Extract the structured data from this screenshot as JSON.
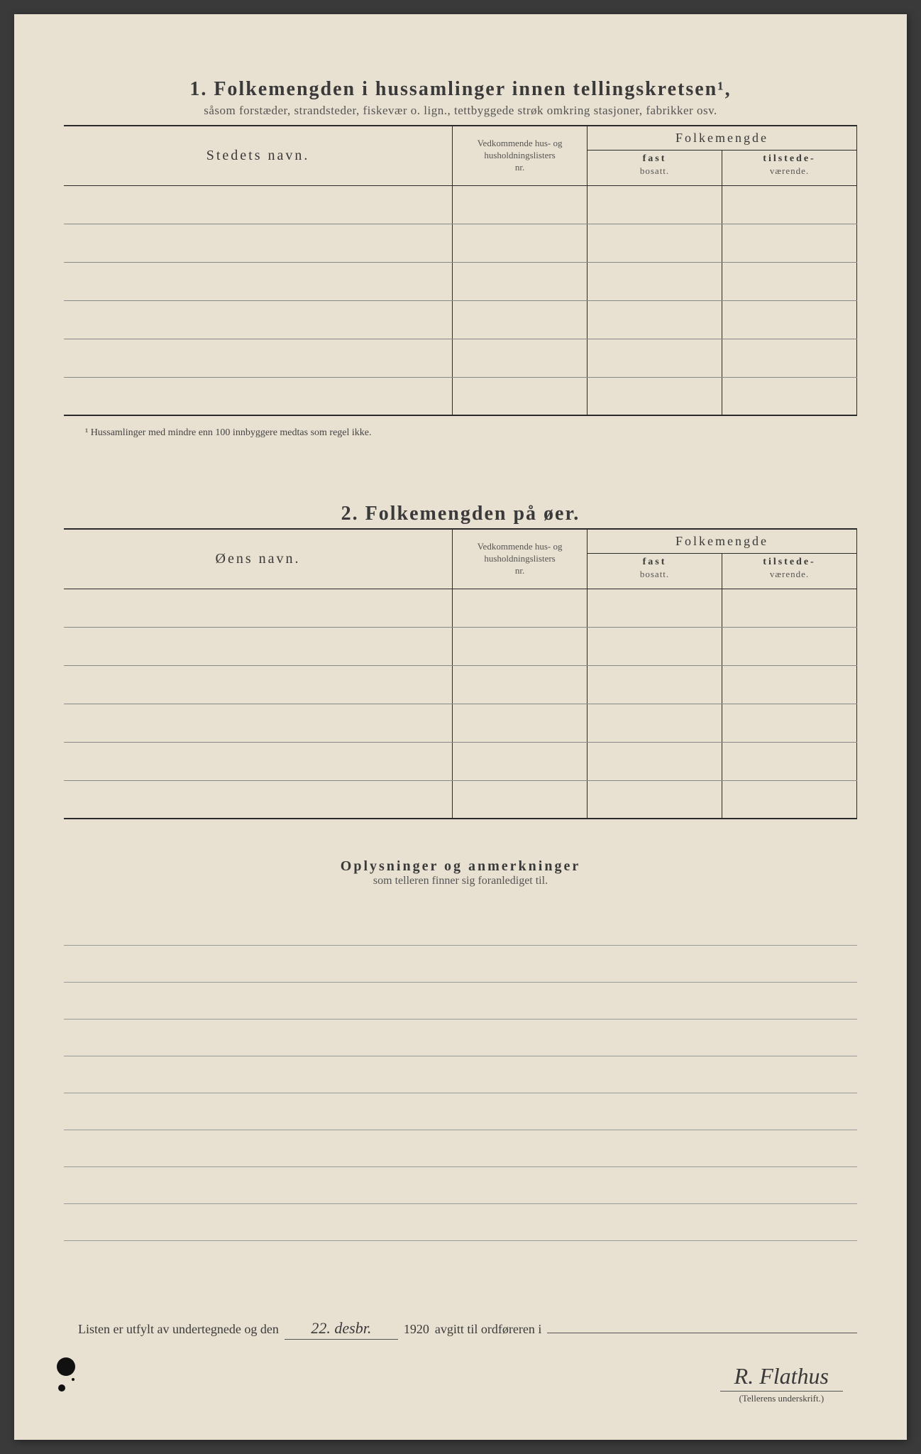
{
  "section1": {
    "number": "1.",
    "title": "Folkemengden i hussamlinger innen tellingskretsen¹,",
    "subtitle": "såsom forstæder, strandsteder, fiskevær o. lign., tettbyggede strøk omkring stasjoner, fabrikker osv.",
    "col_name": "Stedets navn.",
    "col_list_l1": "Vedkommende hus- og",
    "col_list_l2": "husholdningslisters",
    "col_list_l3": "nr.",
    "col_folke": "Folkemengde",
    "col_fast_main": "fast",
    "col_fast_sub": "bosatt.",
    "col_til_main": "tilstede-",
    "col_til_sub": "værende.",
    "footnote": "¹  Hussamlinger med mindre enn 100 innbyggere medtas som regel ikke."
  },
  "section2": {
    "number": "2.",
    "title": "Folkemengden på øer.",
    "col_name": "Øens navn.",
    "col_list_l1": "Vedkommende hus- og",
    "col_list_l2": "husholdningslisters",
    "col_list_l3": "nr.",
    "col_folke": "Folkemengde",
    "col_fast_main": "fast",
    "col_fast_sub": "bosatt.",
    "col_til_main": "tilstede-",
    "col_til_sub": "værende."
  },
  "remarks": {
    "title": "Oplysninger og anmerkninger",
    "subtitle": "som telleren finner sig foranlediget til."
  },
  "signoff": {
    "prefix": "Listen er utfylt av undertegnede og den",
    "date_handwritten": "22. desbr.",
    "year": "1920",
    "suffix": "avgitt til ordføreren i",
    "signature": "R. Flathus",
    "sig_label": "(Tellerens underskrift.)"
  },
  "style": {
    "paper_bg": "#e8e0d0",
    "text_color": "#3a3a3a",
    "rule_color": "#2a2a2a",
    "light_rule": "#888"
  }
}
